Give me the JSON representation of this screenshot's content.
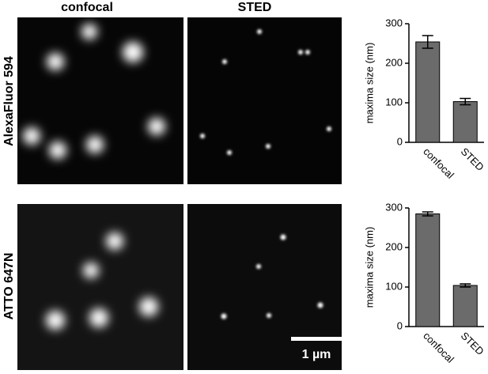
{
  "columns": [
    "confocal",
    "STED"
  ],
  "rows": [
    "AlexaFluor 594",
    "ATTO 647N"
  ],
  "scale_bar": "1 µm",
  "chart_data": [
    {
      "type": "bar",
      "ylabel": "maxima size (nm)",
      "categories": [
        "confocal",
        "STED"
      ],
      "values": [
        254,
        103
      ],
      "errors": [
        16,
        8
      ],
      "color": "#6b6b6b",
      "ylim": [
        0,
        300
      ],
      "yticks": [
        0,
        100,
        200,
        300
      ]
    },
    {
      "type": "bar",
      "ylabel": "maxima size (nm)",
      "categories": [
        "confocal",
        "STED"
      ],
      "values": [
        285,
        104
      ],
      "errors": [
        5,
        4
      ],
      "color": "#6b6b6b",
      "ylim": [
        0,
        300
      ],
      "yticks": [
        0,
        100,
        200,
        300
      ]
    }
  ]
}
